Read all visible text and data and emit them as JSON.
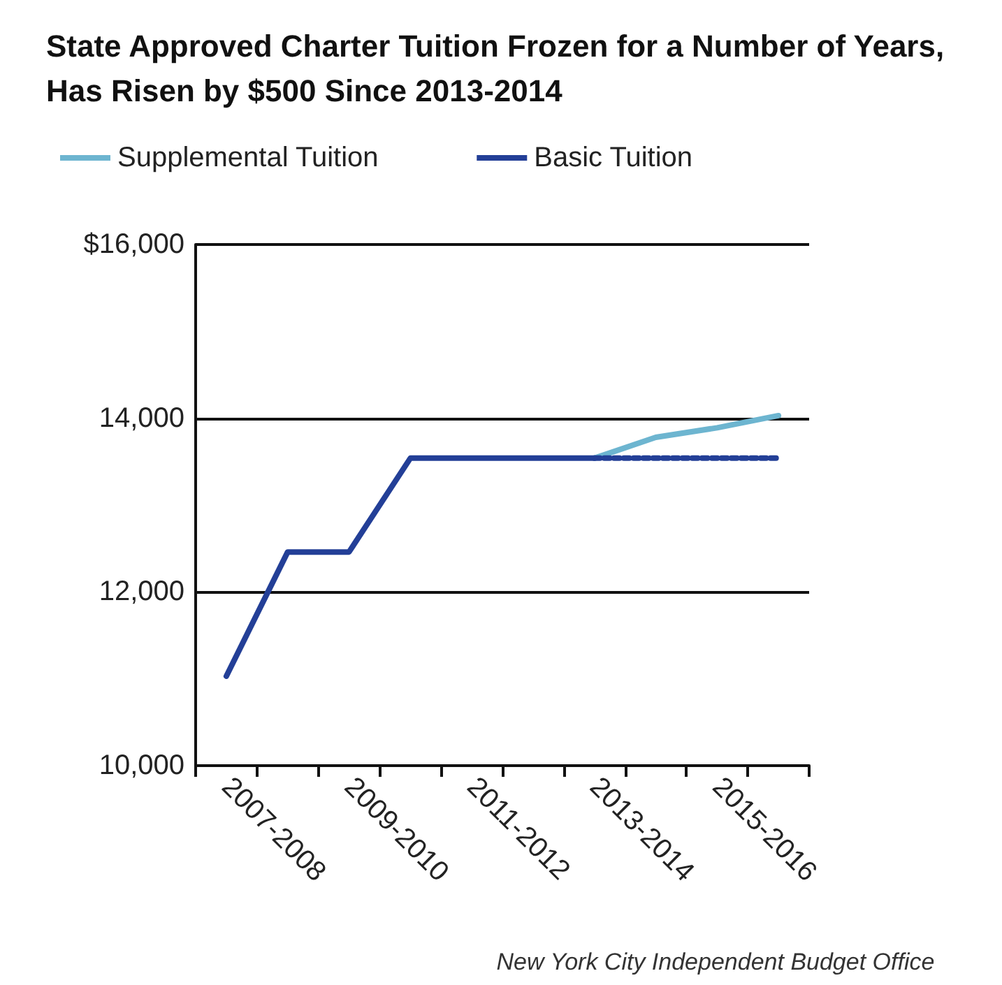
{
  "chart_data": {
    "type": "line",
    "title": "State Approved Charter Tuition Frozen for a Number of Years, Has Risen by $500 Since 2013-2014",
    "categories": [
      "2007-2008",
      null,
      "2009-2010",
      null,
      "2011-2012",
      null,
      "2013-2014",
      null,
      "2015-2016",
      null
    ],
    "series": [
      {
        "name": "Supplemental Tuition",
        "color": "#6db5d0",
        "line_style": "solid",
        "values": [
          null,
          null,
          null,
          null,
          null,
          null,
          13540,
          13780,
          13890,
          14030
        ]
      },
      {
        "color": "#233f97",
        "line_style": "dashed",
        "values": [
          null,
          null,
          null,
          null,
          null,
          null,
          13540,
          13540,
          13540,
          13540
        ]
      },
      {
        "name": "Basic Tuition",
        "color": "#233f97",
        "line_style": "solid",
        "values": [
          11030,
          12460,
          12460,
          13540,
          13540,
          13540,
          13540,
          null,
          null,
          null
        ]
      }
    ],
    "ylim": [
      10000,
      16000
    ],
    "yticks": [
      {
        "value": 10000,
        "label": "10,000"
      },
      {
        "value": 12000,
        "label": "12,000"
      },
      {
        "value": 14000,
        "label": "14,000"
      },
      {
        "value": 16000,
        "label": "$16,000"
      }
    ],
    "grid": "y",
    "legend": "top left",
    "marker": "none",
    "annotations": [
      "New York City Independent Budget Office"
    ]
  }
}
